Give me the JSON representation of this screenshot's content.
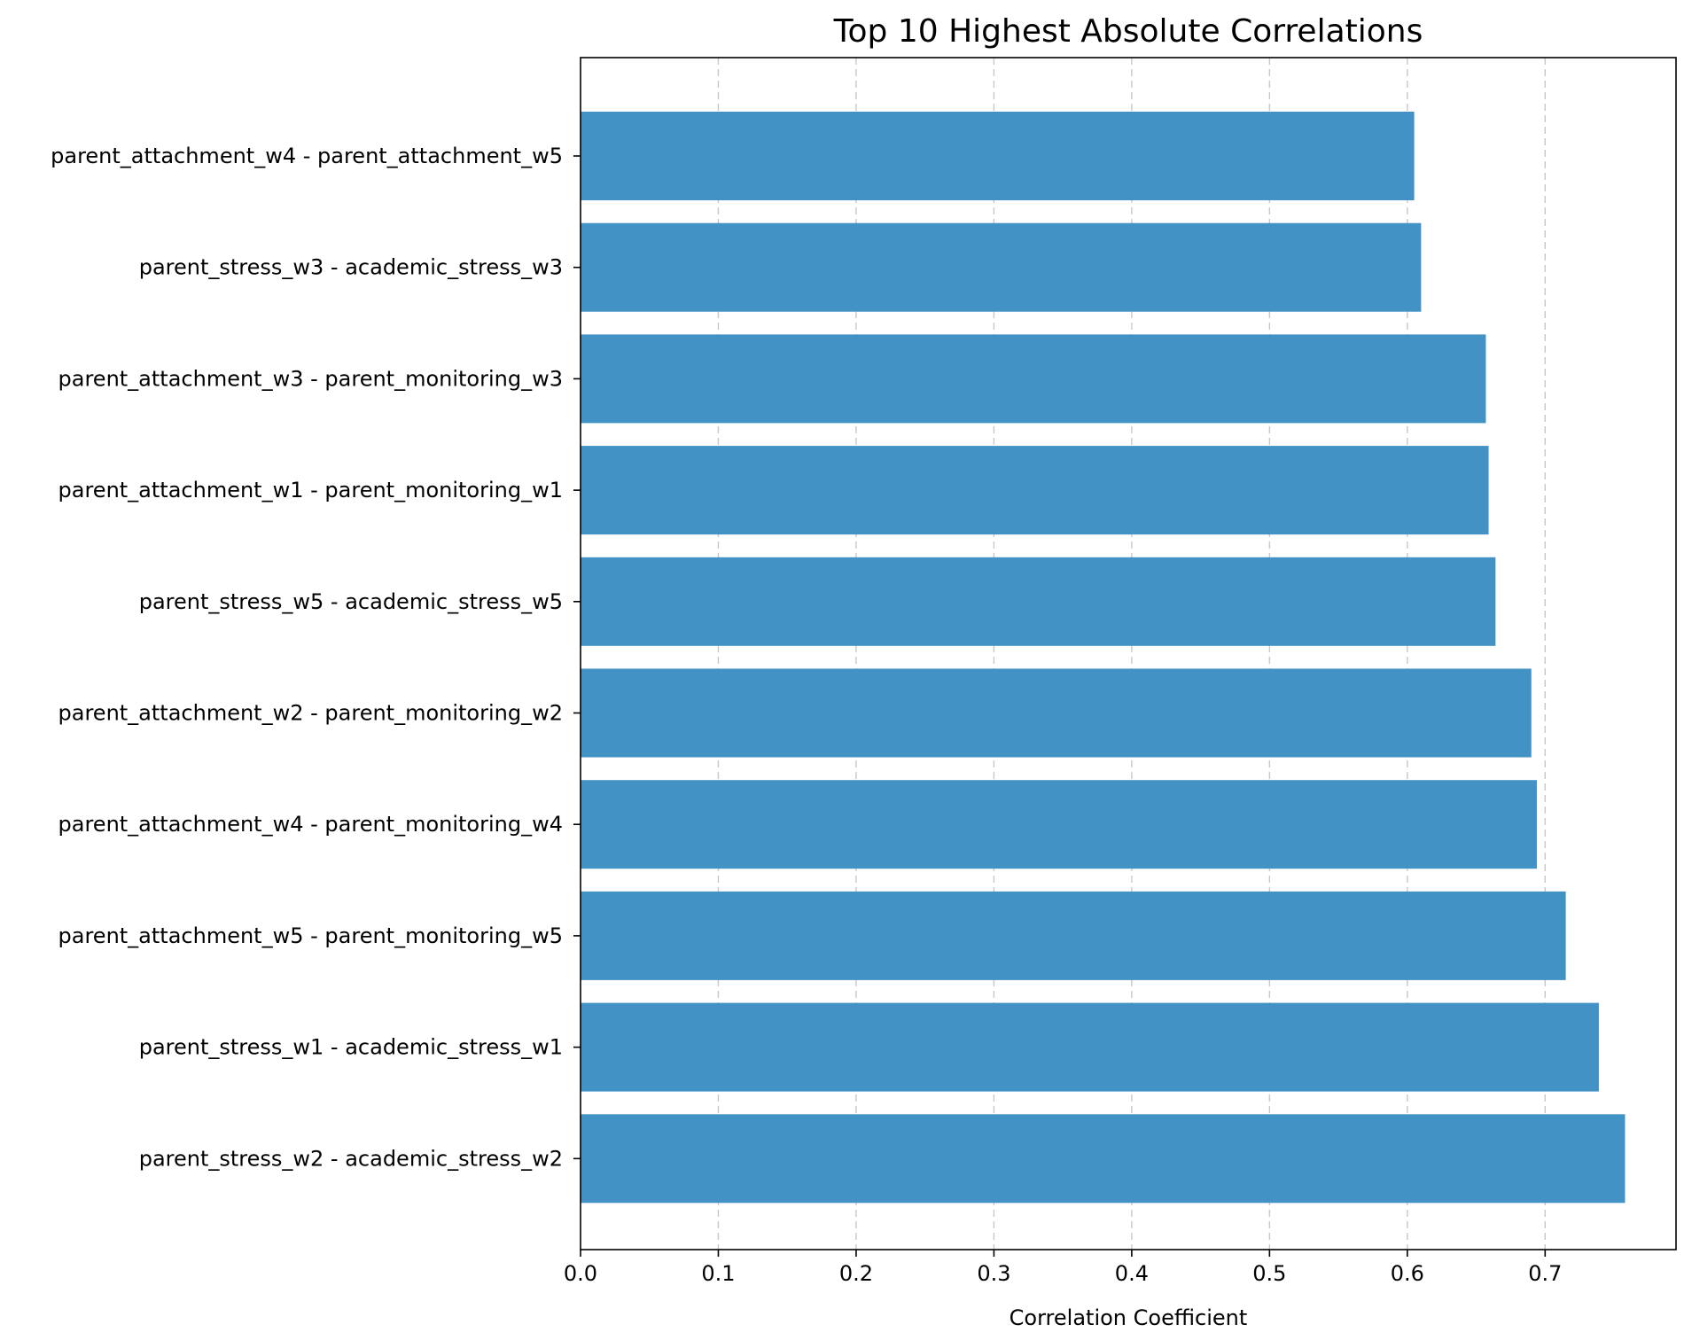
{
  "chart_data": {
    "type": "bar",
    "orientation": "horizontal",
    "title": "Top 10 Highest Absolute Correlations",
    "xlabel": "Correlation Coefficient",
    "ylabel": "",
    "xlim": [
      0.0,
      0.795
    ],
    "x_ticks": [
      "0.0",
      "0.1",
      "0.2",
      "0.3",
      "0.4",
      "0.5",
      "0.6",
      "0.7"
    ],
    "grid": "x-axis, dashed",
    "bar_color": "#4292c6",
    "categories": [
      "parent_attachment_w4 - parent_attachment_w5",
      "parent_stress_w3 - academic_stress_w3",
      "parent_attachment_w3 - parent_monitoring_w3",
      "parent_attachment_w1 - parent_monitoring_w1",
      "parent_stress_w5 - academic_stress_w5",
      "parent_attachment_w2 - parent_monitoring_w2",
      "parent_attachment_w4 - parent_monitoring_w4",
      "parent_attachment_w5 - parent_monitoring_w5",
      "parent_stress_w1 - academic_stress_w1",
      "parent_stress_w2 - academic_stress_w2"
    ],
    "values": [
      0.605,
      0.61,
      0.657,
      0.659,
      0.664,
      0.69,
      0.694,
      0.715,
      0.739,
      0.758
    ]
  }
}
